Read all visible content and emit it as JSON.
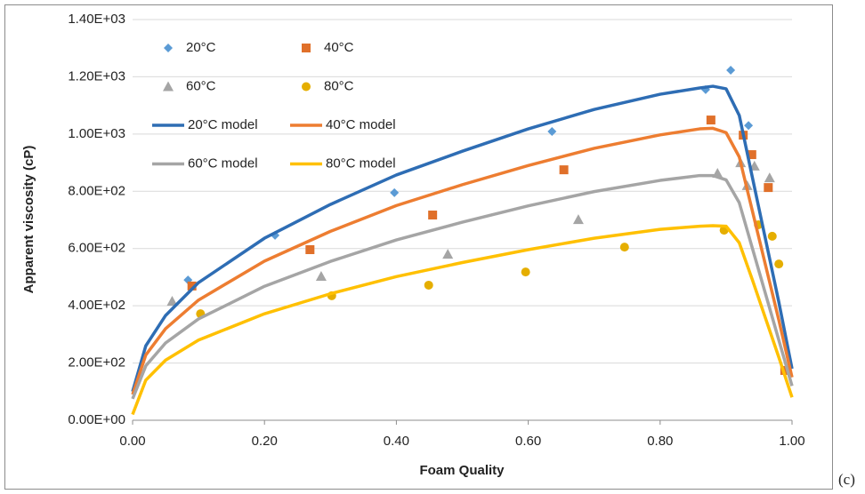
{
  "chart_data": {
    "type": "scatter",
    "panel_label": "(c)",
    "x_label": "Foam Quality",
    "y_label": "Apparent viscosity (cP)",
    "xlim": [
      0,
      1
    ],
    "xticks": [
      {
        "value": 0,
        "label": "0.00"
      },
      {
        "value": 0.2,
        "label": "0.20"
      },
      {
        "value": 0.4,
        "label": "0.40"
      },
      {
        "value": 0.6,
        "label": "0.60"
      },
      {
        "value": 0.8,
        "label": "0.80"
      },
      {
        "value": 1,
        "label": "1.00"
      }
    ],
    "ylim": [
      0,
      1400
    ],
    "yticks": [
      {
        "value": 0,
        "label": "0.00E+00"
      },
      {
        "value": 200,
        "label": "2.00E+02"
      },
      {
        "value": 400,
        "label": "4.00E+02"
      },
      {
        "value": 600,
        "label": "6.00E+02"
      },
      {
        "value": 800,
        "label": "8.00E+02"
      },
      {
        "value": 1000,
        "label": "1.00E+03"
      },
      {
        "value": 1200,
        "label": "1.20E+03"
      },
      {
        "value": 1400,
        "label": "1.40E+03"
      }
    ],
    "grid": true,
    "legend": "upper left",
    "series": [
      {
        "name": "20°C",
        "style": "diamond",
        "color": "#5b9bd5",
        "x": [
          0.084,
          0.216,
          0.397,
          0.636,
          0.869,
          0.907,
          0.934
        ],
        "values": [
          490,
          646,
          795,
          1009,
          1155,
          1223,
          1030
        ]
      },
      {
        "name": "40°C",
        "style": "square",
        "color": "#e0702a",
        "x": [
          0.09,
          0.269,
          0.455,
          0.654,
          0.877,
          0.926,
          0.939,
          0.964,
          0.989
        ],
        "values": [
          469,
          596,
          717,
          875,
          1049,
          996,
          928,
          813,
          174
        ]
      },
      {
        "name": "60°C",
        "style": "triangle",
        "color": "#a5a5a5",
        "x": [
          0.06,
          0.286,
          0.478,
          0.676,
          0.887,
          0.922,
          0.932,
          0.943,
          0.966
        ],
        "values": [
          416,
          503,
          580,
          701,
          863,
          900,
          820,
          888,
          847
        ]
      },
      {
        "name": "80°C",
        "style": "circle",
        "color": "#e5ae00",
        "x": [
          0.103,
          0.302,
          0.449,
          0.596,
          0.746,
          0.897,
          0.949,
          0.97,
          0.98
        ],
        "values": [
          372,
          435,
          472,
          518,
          605,
          664,
          683,
          643,
          546
        ]
      },
      {
        "name": "20°C model",
        "style": "line",
        "color": "#2e6db4",
        "x": [
          0,
          0.02,
          0.05,
          0.1,
          0.2,
          0.3,
          0.4,
          0.5,
          0.6,
          0.7,
          0.8,
          0.86,
          0.88,
          0.9,
          0.92,
          0.94,
          0.96,
          0.98,
          1
        ],
        "values": [
          100,
          260,
          366,
          481,
          636,
          754,
          857,
          940,
          1018,
          1086,
          1139,
          1161,
          1167,
          1158,
          1065,
          847,
          630,
          413,
          180
        ]
      },
      {
        "name": "40°C model",
        "style": "line",
        "color": "#ed7d31",
        "x": [
          0,
          0.02,
          0.05,
          0.1,
          0.2,
          0.3,
          0.4,
          0.5,
          0.6,
          0.7,
          0.8,
          0.86,
          0.88,
          0.9,
          0.92,
          0.94,
          0.96,
          0.98,
          1
        ],
        "values": [
          90,
          228,
          320,
          420,
          556,
          660,
          750,
          823,
          890,
          950,
          997,
          1018,
          1020,
          1005,
          920,
          730,
          540,
          350,
          150
        ]
      },
      {
        "name": "60°C model",
        "style": "line",
        "color": "#a5a5a5",
        "x": [
          0,
          0.02,
          0.05,
          0.1,
          0.2,
          0.3,
          0.4,
          0.5,
          0.6,
          0.7,
          0.8,
          0.86,
          0.88,
          0.9,
          0.92,
          0.94,
          0.96,
          0.98,
          1
        ],
        "values": [
          75,
          190,
          270,
          354,
          468,
          555,
          630,
          692,
          749,
          799,
          838,
          855,
          855,
          840,
          760,
          600,
          440,
          280,
          120
        ]
      },
      {
        "name": "80°C model",
        "style": "line",
        "color": "#ffc000",
        "x": [
          0,
          0.02,
          0.05,
          0.1,
          0.2,
          0.3,
          0.4,
          0.5,
          0.6,
          0.7,
          0.8,
          0.86,
          0.88,
          0.9,
          0.92,
          0.94,
          0.96,
          0.98,
          1
        ],
        "values": [
          20,
          140,
          210,
          280,
          372,
          442,
          502,
          551,
          596,
          636,
          667,
          678,
          680,
          678,
          620,
          490,
          355,
          220,
          80
        ]
      }
    ]
  }
}
